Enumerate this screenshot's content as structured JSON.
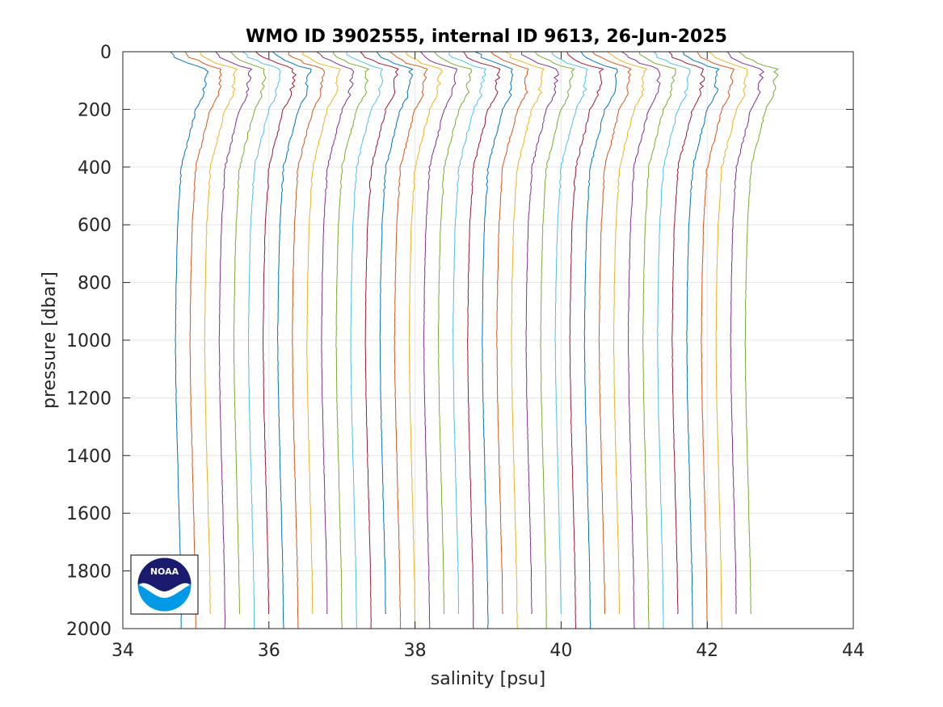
{
  "chart_data": {
    "type": "line",
    "title": "WMO ID 3902555, internal ID 9613, 26-Jun-2025",
    "xlabel": "salinity [psu]",
    "ylabel": "pressure [dbar]",
    "xlim": [
      34,
      44
    ],
    "ylim": [
      0,
      2000
    ],
    "y_reversed": true,
    "grid": true,
    "xticks": [
      "34",
      "36",
      "38",
      "40",
      "42",
      "44"
    ],
    "yticks": [
      "0",
      "200",
      "400",
      "600",
      "800",
      "1000",
      "1200",
      "1400",
      "1600",
      "1800",
      "2000"
    ],
    "x_offset_per_profile": 0.2,
    "profile_shape": {
      "pressure": [
        0,
        20,
        40,
        60,
        100,
        150,
        200,
        300,
        400,
        600,
        800,
        1000,
        1200,
        1400,
        1600,
        1800,
        2000
      ],
      "salinity_anomaly": [
        -0.2,
        -0.12,
        0.05,
        0.3,
        0.28,
        0.26,
        0.15,
        0.05,
        -0.05,
        -0.1,
        -0.12,
        -0.13,
        -0.12,
        -0.1,
        -0.08,
        -0.06,
        -0.05
      ]
    },
    "profile_count": 40,
    "first_profile_deep_salinity": 34.85,
    "colors": [
      "#0072BD",
      "#D95319",
      "#EDB120",
      "#7E2F8E",
      "#77AC30",
      "#4DBEEE",
      "#A2142F"
    ],
    "logo": {
      "text": "NOAA"
    }
  }
}
